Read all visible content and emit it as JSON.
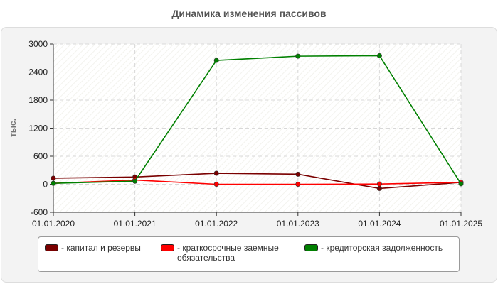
{
  "chart_data": {
    "type": "line",
    "title": "Динамика изменения пассивов",
    "ylabel": "тыс.",
    "xlabel": "",
    "categories": [
      "01.01.2020",
      "01.01.2021",
      "01.01.2022",
      "01.01.2023",
      "01.01.2024",
      "01.01.2025"
    ],
    "y_ticks": [
      "3000",
      "2400",
      "1800",
      "1200",
      "600",
      "0",
      "-600"
    ],
    "ylim": [
      -600,
      3000
    ],
    "grid": true,
    "legend_position": "bottom",
    "series": [
      {
        "name": "- капитал и резервы",
        "color": "#7a0000",
        "values": [
          130,
          155,
          235,
          215,
          -90,
          40
        ]
      },
      {
        "name": "- краткосрочные заемные обязательства",
        "color": "#ff0000",
        "values": [
          20,
          90,
          0,
          0,
          5,
          40
        ]
      },
      {
        "name": "- кредиторская задолженность",
        "color": "#008000",
        "values": [
          20,
          65,
          2650,
          2740,
          2750,
          10
        ]
      }
    ]
  }
}
